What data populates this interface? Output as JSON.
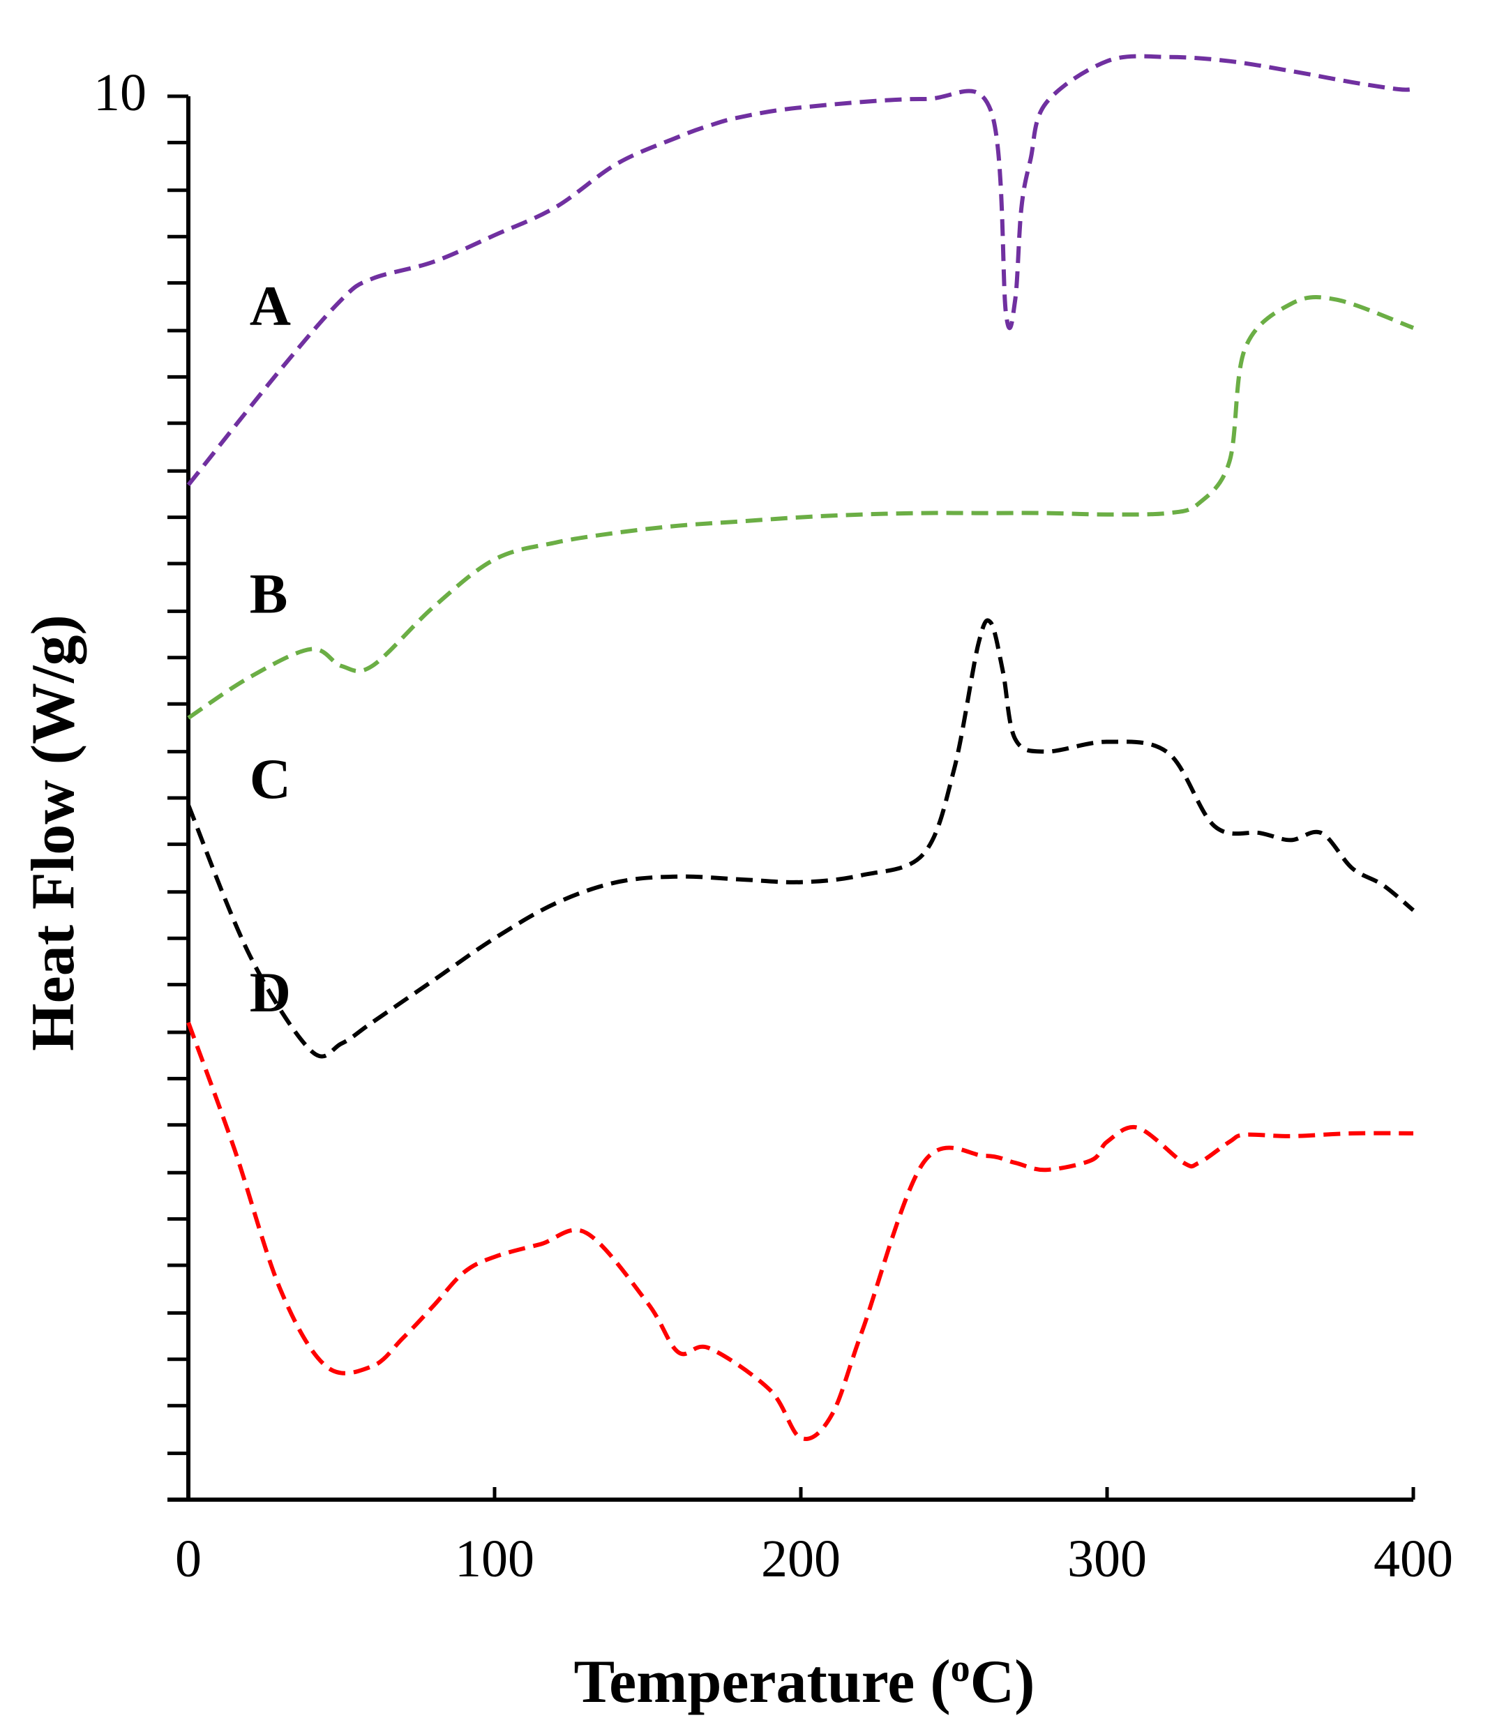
{
  "chart_data": {
    "type": "line",
    "title": "",
    "xlabel": "Temperature (",
    "xlabel_sup": "o",
    "xlabel_end": "C)",
    "ylabel": "Heat Flow (W/g)",
    "xlim": [
      0,
      400
    ],
    "ylim": [
      0,
      10
    ],
    "x_ticks": [
      0,
      100,
      200,
      300,
      400
    ],
    "x_tick_labels": [
      "0",
      "100",
      "200",
      "300",
      "400"
    ],
    "y_top_label": "10",
    "y_minor_ticks": [
      0.0,
      0.33,
      0.67,
      1.0,
      1.33,
      1.67,
      2.0,
      2.33,
      2.67,
      3.0,
      3.33,
      3.67,
      4.0,
      4.33,
      4.67,
      5.0,
      5.33,
      5.67,
      6.0,
      6.33,
      6.67,
      7.0,
      7.33,
      7.67,
      8.0,
      8.33,
      8.67,
      9.0,
      9.33,
      9.67,
      10.0
    ],
    "grid": false,
    "series": [
      {
        "name": "A",
        "color": "#7030A0",
        "label_at": [
          20,
          8.37
        ],
        "x": [
          0,
          30,
          50,
          60,
          80,
          100,
          120,
          140,
          160,
          170,
          180,
          200,
          240,
          262,
          267,
          270,
          272,
          275,
          280,
          300,
          320,
          340,
          360,
          380,
          395,
          400
        ],
        "y": [
          7.23,
          8.05,
          8.55,
          8.7,
          8.82,
          9.01,
          9.21,
          9.52,
          9.71,
          9.79,
          9.85,
          9.92,
          9.98,
          9.9,
          8.45,
          8.55,
          9.2,
          9.55,
          9.95,
          10.25,
          10.28,
          10.25,
          10.18,
          10.1,
          10.05,
          10.05
        ]
      },
      {
        "name": "B",
        "color": "#6BAE45",
        "label_at": [
          20,
          6.32
        ],
        "x": [
          0,
          20,
          40,
          50,
          60,
          80,
          100,
          120,
          140,
          160,
          180,
          200,
          220,
          240,
          260,
          280,
          300,
          320,
          330,
          340,
          345,
          360,
          375,
          400
        ],
        "y": [
          5.57,
          5.86,
          6.06,
          5.94,
          5.94,
          6.36,
          6.7,
          6.82,
          6.89,
          6.94,
          6.97,
          7.0,
          7.02,
          7.03,
          7.03,
          7.03,
          7.02,
          7.03,
          7.1,
          7.4,
          8.2,
          8.52,
          8.55,
          8.35
        ]
      },
      {
        "name": "C",
        "color": "#000000",
        "label_at": [
          20,
          5.0
        ],
        "x": [
          0,
          20,
          40,
          50,
          60,
          80,
          100,
          120,
          140,
          160,
          180,
          200,
          220,
          240,
          250,
          258,
          262,
          266,
          270,
          280,
          300,
          320,
          335,
          350,
          360,
          370,
          380,
          390,
          400
        ],
        "y": [
          4.95,
          3.88,
          3.2,
          3.25,
          3.4,
          3.7,
          4.0,
          4.25,
          4.4,
          4.44,
          4.42,
          4.4,
          4.45,
          4.6,
          5.2,
          6.1,
          6.25,
          5.9,
          5.42,
          5.33,
          5.4,
          5.32,
          4.8,
          4.75,
          4.7,
          4.75,
          4.5,
          4.38,
          4.2
        ]
      },
      {
        "name": "D",
        "color": "#FF0000",
        "label_at": [
          20,
          3.48
        ],
        "x": [
          0,
          15,
          30,
          45,
          60,
          70,
          80,
          90,
          100,
          115,
          130,
          150,
          160,
          170,
          190,
          200,
          210,
          220,
          240,
          260,
          270,
          280,
          295,
          300,
          310,
          325,
          330,
          340,
          345,
          360,
          380,
          400
        ],
        "y": [
          3.4,
          2.5,
          1.5,
          0.95,
          0.95,
          1.15,
          1.38,
          1.62,
          1.73,
          1.82,
          1.9,
          1.4,
          1.05,
          1.08,
          0.78,
          0.44,
          0.6,
          1.2,
          2.4,
          2.45,
          2.4,
          2.35,
          2.42,
          2.55,
          2.65,
          2.4,
          2.4,
          2.55,
          2.6,
          2.59,
          2.61,
          2.61
        ]
      }
    ]
  }
}
